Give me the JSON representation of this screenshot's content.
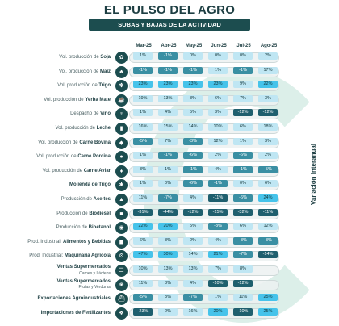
{
  "header": {
    "title": "EL PULSO DEL AGRO",
    "subtitle": "SUBAS Y BAJAS DE LA ACTIVIDAD"
  },
  "side_label": "Variación Interanual",
  "months": [
    "Mar-25",
    "Abr-25",
    "May-25",
    "Jun-25",
    "Jul-25",
    "Ago-25"
  ],
  "colors": {
    "dark": "#1c4d4f",
    "up_light": "#bfe6f3",
    "up_mid": "#46c3ea",
    "down_mid": "#3a8fa3",
    "down_dark": "#1f5f6e"
  },
  "rows": [
    {
      "pre": "Vol. producción de ",
      "bold": "Soja",
      "sub": "",
      "icon": "soy-icon",
      "glyph": "✿",
      "values": [
        "1%",
        "-1%",
        "0%",
        "0%",
        "0%",
        "2%"
      ]
    },
    {
      "pre": "Vol. producción de ",
      "bold": "Maíz",
      "sub": "",
      "icon": "corn-icon",
      "glyph": "♣",
      "values": [
        "-1%",
        "-1%",
        "-1%",
        "1%",
        "-1%",
        "17%"
      ]
    },
    {
      "pre": "Vol. producción de ",
      "bold": "Trigo",
      "sub": "",
      "icon": "wheat-icon",
      "glyph": "✽",
      "values": [
        "23%",
        "23%",
        "23%",
        "23%",
        "9%",
        "22%"
      ]
    },
    {
      "pre": "Vol. producción de ",
      "bold": "Yerba Mate",
      "sub": "",
      "icon": "mate-icon",
      "glyph": "☕",
      "values": [
        "19%",
        "13%",
        "8%",
        "6%",
        "7%",
        "3%"
      ]
    },
    {
      "pre": "Despacho de ",
      "bold": "Vino",
      "sub": "",
      "icon": "wine-icon",
      "glyph": "♆",
      "values": [
        "1%",
        "4%",
        "5%",
        "3%",
        "-12%",
        "-12%"
      ]
    },
    {
      "pre": "Vol. producción de ",
      "bold": "Leche",
      "sub": "",
      "icon": "milk-icon",
      "glyph": "▮",
      "values": [
        "16%",
        "15%",
        "14%",
        "10%",
        "6%",
        "18%"
      ]
    },
    {
      "pre": "Vol. producción de ",
      "bold": "Carne Bovina",
      "sub": "",
      "icon": "cow-icon",
      "glyph": "◆",
      "values": [
        "-5%",
        "7%",
        "-3%",
        "12%",
        "1%",
        "3%"
      ]
    },
    {
      "pre": "Vol. producción de ",
      "bold": "Carne Porcina",
      "sub": "",
      "icon": "pig-icon",
      "glyph": "●",
      "values": [
        "1%",
        "-1%",
        "-6%",
        "2%",
        "-6%",
        "2%"
      ]
    },
    {
      "pre": "Vol. producción de ",
      "bold": "Carne Aviar",
      "sub": "",
      "icon": "chicken-icon",
      "glyph": "♦",
      "values": [
        "3%",
        "1%",
        "-1%",
        "4%",
        "-1%",
        "-5%"
      ]
    },
    {
      "pre": "",
      "bold": "Molienda de Trigo",
      "sub": "",
      "icon": "mill-icon",
      "glyph": "✱",
      "values": [
        "1%",
        "0%",
        "-6%",
        "-1%",
        "0%",
        "6%"
      ]
    },
    {
      "pre": "Producción de ",
      "bold": "Aceites",
      "sub": "",
      "icon": "oil-icon",
      "glyph": "▲",
      "values": [
        "11%",
        "-7%",
        "4%",
        "-11%",
        "-6%",
        "24%"
      ]
    },
    {
      "pre": "Producción de ",
      "bold": "Biodiesel",
      "sub": "",
      "icon": "biodiesel-icon",
      "glyph": "■",
      "values": [
        "-31%",
        "-44%",
        "-12%",
        "-15%",
        "-32%",
        "-11%"
      ]
    },
    {
      "pre": "Producción de ",
      "bold": "Bioetanol",
      "sub": "",
      "icon": "bioethanol-icon",
      "glyph": "◉",
      "values": [
        "22%",
        "20%",
        "5%",
        "-3%",
        "6%",
        "12%"
      ]
    },
    {
      "pre": "Prod. Industrial: ",
      "bold": "Alimentos y Bebidas",
      "sub": "",
      "icon": "food-icon",
      "glyph": "◼",
      "values": [
        "6%",
        "8%",
        "2%",
        "4%",
        "-3%",
        "-3%"
      ]
    },
    {
      "pre": "Prod. Industrial: ",
      "bold": "Maquinaria Agrícola",
      "sub": "",
      "icon": "tractor-icon",
      "glyph": "⚙",
      "values": [
        "47%",
        "30%",
        "14%",
        "21%",
        "-7%",
        "-14%"
      ]
    },
    {
      "pre": "",
      "bold": "Ventas Supermercados",
      "sub": "Carnes y Lácteos",
      "icon": "cart-meat-icon",
      "glyph": "☰",
      "values": [
        "10%",
        "13%",
        "13%",
        "7%",
        "8%",
        ""
      ]
    },
    {
      "pre": "",
      "bold": "Ventas Supermercados",
      "sub": "Frutas y Verduras",
      "icon": "cart-produce-icon",
      "glyph": "❀",
      "values": [
        "11%",
        "8%",
        "4%",
        "-10%",
        "-12%",
        ""
      ]
    },
    {
      "pre": "",
      "bold": "Exportaciones Agroindustriales",
      "sub": "",
      "icon": "export-icon",
      "glyph": "⛴",
      "values": [
        "-5%",
        "3%",
        "-7%",
        "1%",
        "11%",
        "25%"
      ]
    },
    {
      "pre": "",
      "bold": "Importaciones de Fertilizantes",
      "sub": "",
      "icon": "fertilizer-icon",
      "glyph": "❖",
      "values": [
        "-23%",
        "2%",
        "16%",
        "20%",
        "-10%",
        "25%"
      ]
    }
  ]
}
